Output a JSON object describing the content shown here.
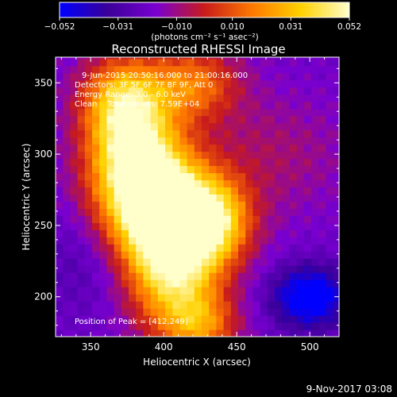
{
  "chart_data": {
    "type": "heatmap",
    "title": "Reconstructed RHESSI Image",
    "xlabel": "Heliocentric X (arcsec)",
    "ylabel": "Heliocentric Y (arcsec)",
    "xlim": [
      326,
      520
    ],
    "ylim": [
      172,
      368
    ],
    "x_ticks": [
      350,
      400,
      450,
      500
    ],
    "y_ticks": [
      200,
      250,
      300,
      350
    ],
    "colorbar": {
      "range": [
        -0.052,
        0.052
      ],
      "tick_values": [
        -0.052,
        -0.031,
        -0.01,
        0.01,
        0.031,
        0.052
      ],
      "tick_labels": [
        "−0.052",
        "−0.031",
        "−0.010",
        "0.010",
        "0.031",
        "0.052"
      ],
      "unit_label": "(photons cm⁻² s⁻¹ asec⁻²)",
      "colormap": [
        "#0000ff",
        "#3a0099",
        "#7a00d0",
        "#c81b1b",
        "#ff7a00",
        "#ffd200",
        "#ffffcc"
      ]
    },
    "annotations": {
      "time_range": "9-Jun-2015 20:50:16.000 to 21:00:16.000",
      "detectors": "Detectors: 3F 5F 6F 7F 8F 9F, Att 0",
      "energy_range": "Energy Range: 3.0 - 6.0 keV",
      "algorithm": "Clean    Total counts: 7.59E+04",
      "peak": "Position of Peak = [412,249]"
    },
    "peak_position": [
      412,
      249
    ],
    "peak_value": 0.052,
    "background_level": -0.02,
    "emission_blobs": [
      {
        "x": 412,
        "y": 249,
        "sx": 26,
        "sy": 24,
        "amp": 0.075
      },
      {
        "x": 392,
        "y": 268,
        "sx": 28,
        "sy": 26,
        "amp": 0.05
      },
      {
        "x": 380,
        "y": 300,
        "sx": 22,
        "sy": 26,
        "amp": 0.055
      },
      {
        "x": 372,
        "y": 338,
        "sx": 20,
        "sy": 22,
        "amp": 0.05
      },
      {
        "x": 420,
        "y": 350,
        "sx": 22,
        "sy": 18,
        "amp": 0.035
      },
      {
        "x": 405,
        "y": 210,
        "sx": 22,
        "sy": 26,
        "amp": 0.045
      },
      {
        "x": 425,
        "y": 180,
        "sx": 18,
        "sy": 16,
        "amp": 0.035
      },
      {
        "x": 440,
        "y": 255,
        "sx": 14,
        "sy": 18,
        "amp": 0.02
      },
      {
        "x": 500,
        "y": 200,
        "sx": 18,
        "sy": 15,
        "amp": -0.04
      },
      {
        "x": 472,
        "y": 300,
        "sx": 40,
        "sy": 30,
        "amp": 0.012
      },
      {
        "x": 350,
        "y": 230,
        "sx": 24,
        "sy": 30,
        "amp": -0.01
      }
    ]
  },
  "footer": {
    "date_stamp": "9-Nov-2017 03:08"
  }
}
